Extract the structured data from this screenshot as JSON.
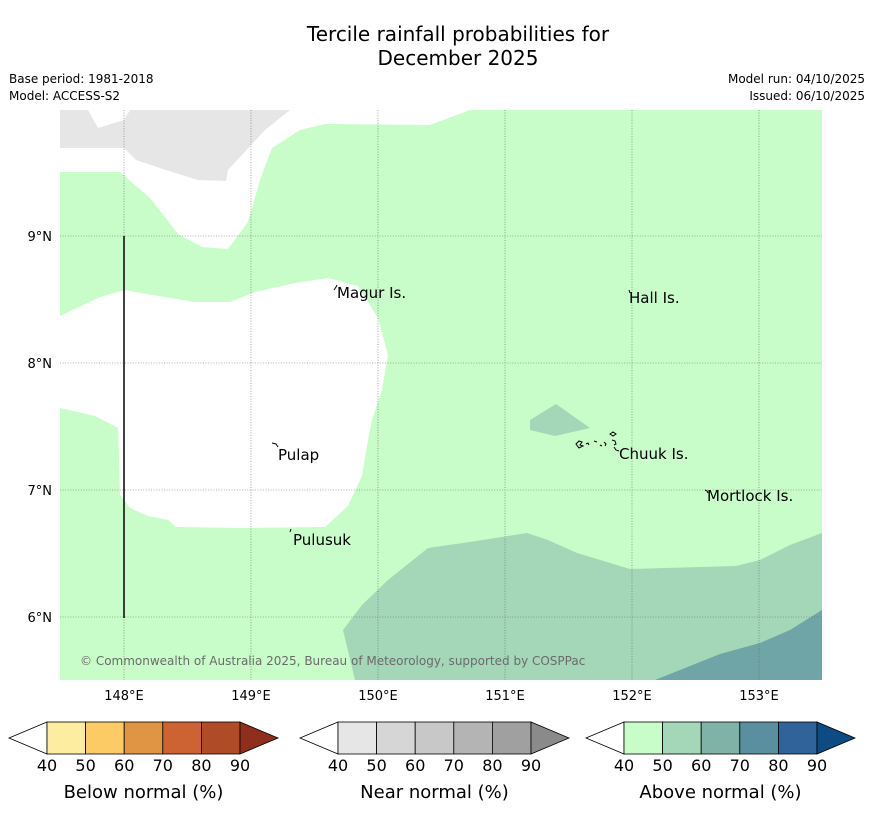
{
  "title": {
    "line1": "Tercile rainfall probabilities for",
    "line2": "December 2025"
  },
  "meta": {
    "base_period": "Base period: 1981-2018",
    "model": "Model: ACCESS-S2",
    "model_run": "Model run: 04/10/2025",
    "issued": "Issued: 06/10/2025"
  },
  "map": {
    "lon_labels": [
      "148°E",
      "149°E",
      "150°E",
      "151°E",
      "152°E",
      "153°E"
    ],
    "lat_labels": [
      "9°N",
      "8°N",
      "7°N",
      "6°N"
    ],
    "places": [
      "Magur Is.",
      "Hall Is.",
      "Pulap",
      "Chuuk Is.",
      "Mortlock Is.",
      "Pulusuk"
    ],
    "copyright": "© Commonwealth of Australia 2025, Bureau of Meteorology, supported by COSPPac"
  },
  "legends": [
    {
      "name": "below",
      "title": "Below normal (%)",
      "ticks": [
        "40",
        "50",
        "60",
        "70",
        "80",
        "90"
      ],
      "colors": [
        "#ffffff",
        "#fdeda0",
        "#fdcb66",
        "#e09544",
        "#cd6232",
        "#b04b27",
        "#8f2e1c"
      ]
    },
    {
      "name": "near",
      "title": "Near normal (%)",
      "ticks": [
        "40",
        "50",
        "60",
        "70",
        "80",
        "90"
      ],
      "colors": [
        "#ffffff",
        "#e6e6e6",
        "#d6d6d6",
        "#c8c8c8",
        "#b4b4b4",
        "#a0a0a0",
        "#8a8a8a"
      ]
    },
    {
      "name": "above",
      "title": "Above normal (%)",
      "ticks": [
        "40",
        "50",
        "60",
        "70",
        "80",
        "90"
      ],
      "colors": [
        "#ffffff",
        "#c8fcc8",
        "#a4d6b8",
        "#7fb3a8",
        "#5a8fa0",
        "#2f6399",
        "#0e4b82"
      ]
    }
  ]
}
